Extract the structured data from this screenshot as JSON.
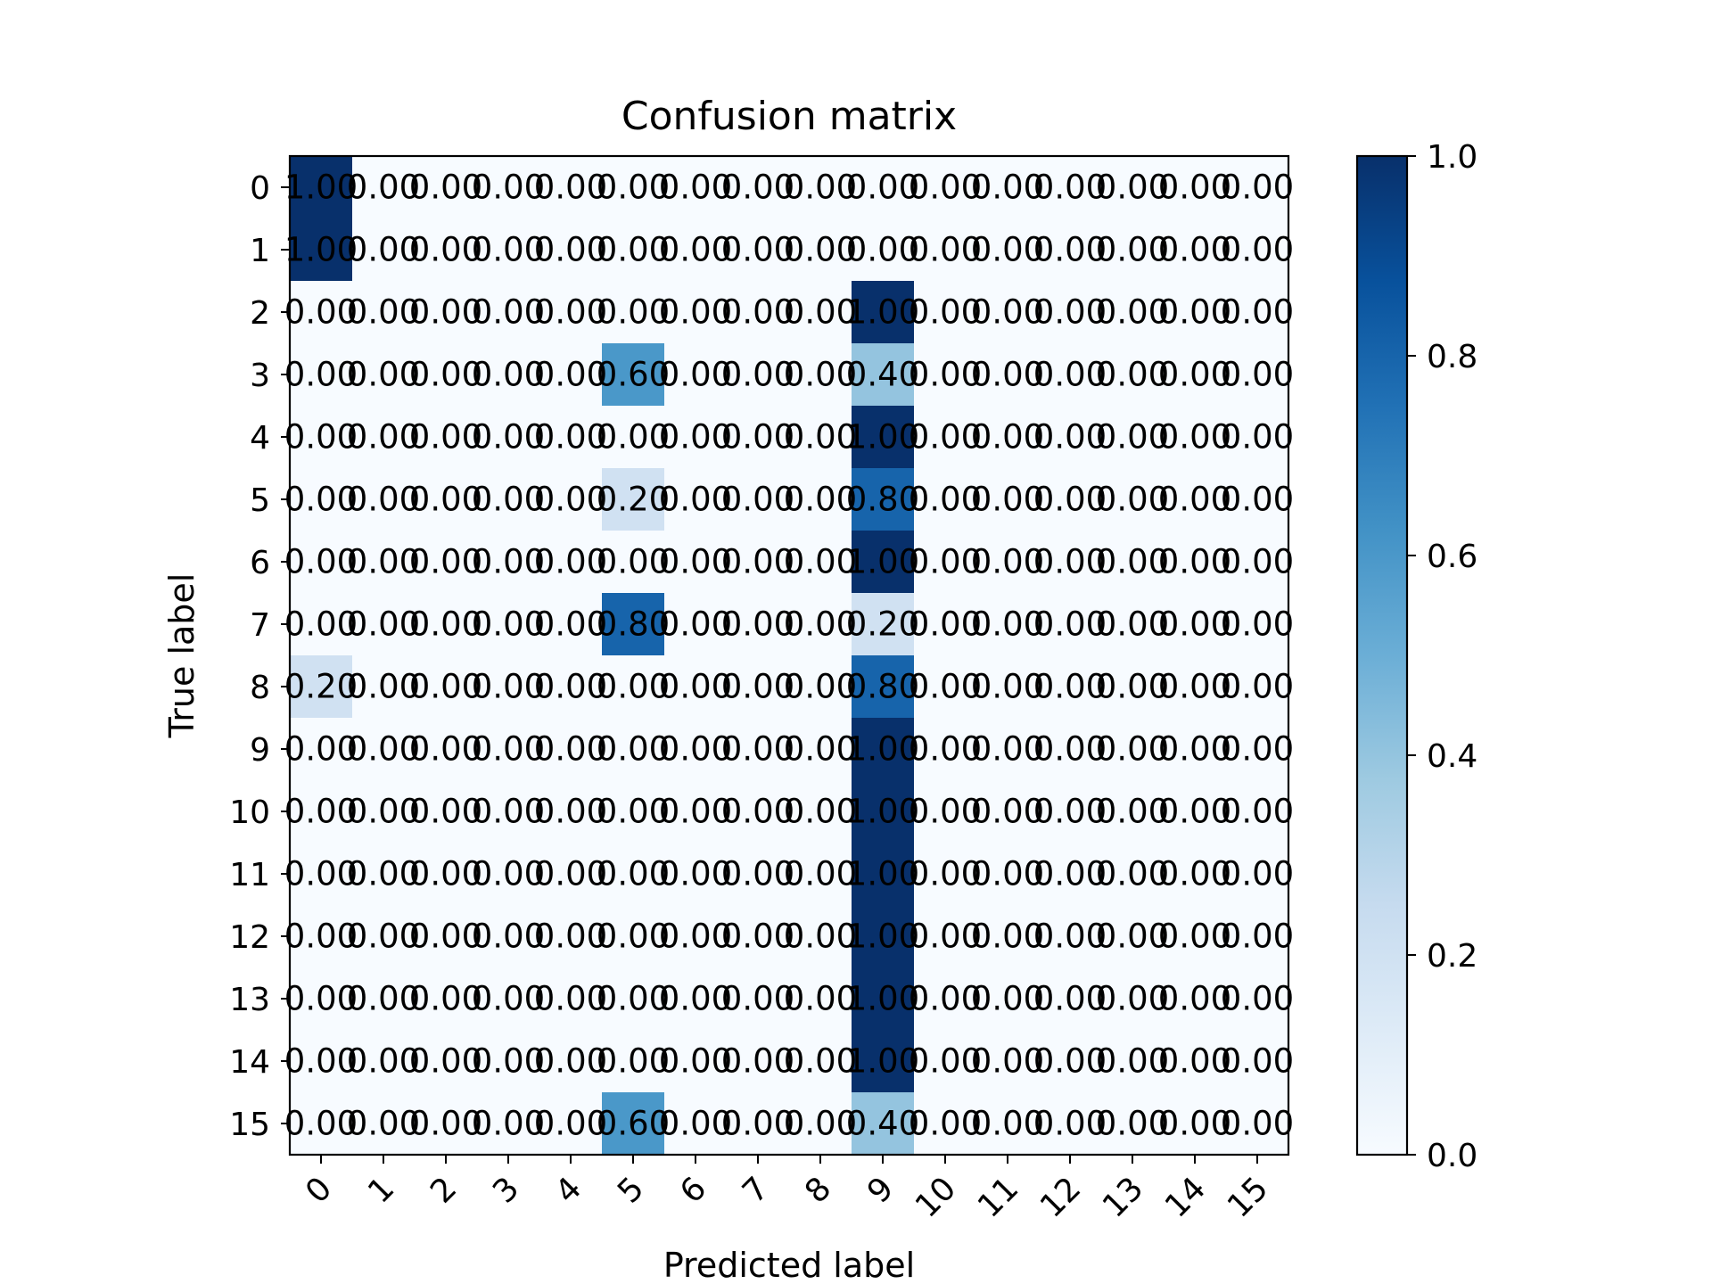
{
  "chart_data": {
    "type": "heatmap",
    "title": "Confusion matrix",
    "xlabel": "Predicted label",
    "ylabel": "True label",
    "x_categories": [
      "0",
      "1",
      "2",
      "3",
      "4",
      "5",
      "6",
      "7",
      "8",
      "9",
      "10",
      "11",
      "12",
      "13",
      "14",
      "15"
    ],
    "y_categories": [
      "0",
      "1",
      "2",
      "3",
      "4",
      "5",
      "6",
      "7",
      "8",
      "9",
      "10",
      "11",
      "12",
      "13",
      "14",
      "15"
    ],
    "value_format": "2 decimals",
    "values": [
      [
        1.0,
        0,
        0,
        0,
        0,
        0,
        0,
        0,
        0,
        0,
        0,
        0,
        0,
        0,
        0,
        0
      ],
      [
        1.0,
        0,
        0,
        0,
        0,
        0,
        0,
        0,
        0,
        0,
        0,
        0,
        0,
        0,
        0,
        0
      ],
      [
        0,
        0,
        0,
        0,
        0,
        0,
        0,
        0,
        0,
        1.0,
        0,
        0,
        0,
        0,
        0,
        0
      ],
      [
        0,
        0,
        0,
        0,
        0,
        0.6,
        0,
        0,
        0,
        0.4,
        0,
        0,
        0,
        0,
        0,
        0
      ],
      [
        0,
        0,
        0,
        0,
        0,
        0,
        0,
        0,
        0,
        1.0,
        0,
        0,
        0,
        0,
        0,
        0
      ],
      [
        0,
        0,
        0,
        0,
        0,
        0.2,
        0,
        0,
        0,
        0.8,
        0,
        0,
        0,
        0,
        0,
        0
      ],
      [
        0,
        0,
        0,
        0,
        0,
        0,
        0,
        0,
        0,
        1.0,
        0,
        0,
        0,
        0,
        0,
        0
      ],
      [
        0,
        0,
        0,
        0,
        0,
        0.8,
        0,
        0,
        0,
        0.2,
        0,
        0,
        0,
        0,
        0,
        0
      ],
      [
        0.2,
        0,
        0,
        0,
        0,
        0,
        0,
        0,
        0,
        0.8,
        0,
        0,
        0,
        0,
        0,
        0
      ],
      [
        0,
        0,
        0,
        0,
        0,
        0,
        0,
        0,
        0,
        1.0,
        0,
        0,
        0,
        0,
        0,
        0
      ],
      [
        0,
        0,
        0,
        0,
        0,
        0,
        0,
        0,
        0,
        1.0,
        0,
        0,
        0,
        0,
        0,
        0
      ],
      [
        0,
        0,
        0,
        0,
        0,
        0,
        0,
        0,
        0,
        1.0,
        0,
        0,
        0,
        0,
        0,
        0
      ],
      [
        0,
        0,
        0,
        0,
        0,
        0,
        0,
        0,
        0,
        1.0,
        0,
        0,
        0,
        0,
        0,
        0
      ],
      [
        0,
        0,
        0,
        0,
        0,
        0,
        0,
        0,
        0,
        1.0,
        0,
        0,
        0,
        0,
        0,
        0
      ],
      [
        0,
        0,
        0,
        0,
        0,
        0,
        0,
        0,
        0,
        1.0,
        0,
        0,
        0,
        0,
        0,
        0
      ],
      [
        0,
        0,
        0,
        0,
        0,
        0.6,
        0,
        0,
        0,
        0.4,
        0,
        0,
        0,
        0,
        0,
        0
      ]
    ],
    "colorbar": {
      "range": [
        0.0,
        1.0
      ],
      "ticks": [
        "0.0",
        "0.2",
        "0.4",
        "0.6",
        "0.8",
        "1.0"
      ],
      "colormap": "Blues",
      "color_low": "#f7fbff",
      "color_high": "#08306b"
    },
    "annotation_colors": {
      "dark_cell_text": "#ffffff",
      "light_cell_text": "#000000"
    }
  }
}
